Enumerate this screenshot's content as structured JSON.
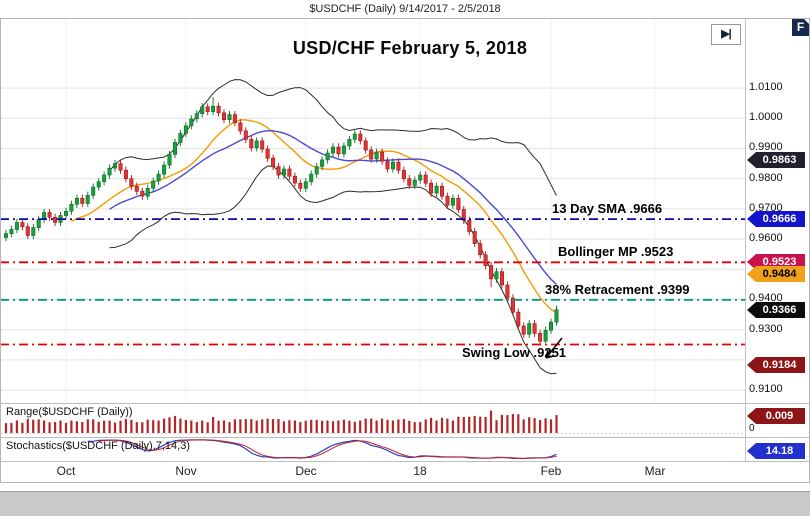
{
  "window": {
    "title": "$USDCHF (Daily)  9/14/2017 - 2/5/2018",
    "logo": "F"
  },
  "icons": {
    "step_forward": "▶|"
  },
  "chart_data": {
    "type": "candlestick",
    "symbol": "$USDCHF",
    "timeframe": "Daily",
    "date_range": "9/14/2017 - 2/5/2018",
    "title_annotation": "USD/CHF February 5, 2018",
    "colors": {
      "candle_up": "#17a13c",
      "candle_up_edge": "#0c6b26",
      "candle_down": "#e23434",
      "candle_down_edge": "#9c1717",
      "bollinger_band": "#2b2b2b",
      "sma13": "#f59a00",
      "sma20": "#4a4ad0",
      "grid": "#e3e3e3"
    },
    "y_axis": {
      "grid_min": 0.91,
      "grid_max": 1.01,
      "grid_step": 0.01,
      "labels": [
        {
          "text": "1.0100",
          "value": 1.01
        },
        {
          "text": "1.0000",
          "value": 1.0
        },
        {
          "text": "0.9900",
          "value": 0.99
        },
        {
          "text": "0.9800",
          "value": 0.98
        },
        {
          "text": "0.9700",
          "value": 0.97
        },
        {
          "text": "0.9600",
          "value": 0.96
        },
        {
          "text": "0.9400",
          "value": 0.94
        },
        {
          "text": "0.9300",
          "value": 0.93
        },
        {
          "text": "0.9100",
          "value": 0.91
        }
      ]
    },
    "x_axis": {
      "ticks": [
        {
          "label": "Oct",
          "index": 11
        },
        {
          "label": "Nov",
          "index": 33
        },
        {
          "label": "Dec",
          "index": 55
        },
        {
          "label": "18",
          "index": 76
        },
        {
          "label": "Feb",
          "index": 100
        },
        {
          "label": "Mar",
          "index": 119
        }
      ]
    },
    "hlines": [
      {
        "label": "13 Day SMA .9666",
        "value": 0.9666,
        "color": "#0a0aa8"
      },
      {
        "label": "Bollinger MP .9523",
        "value": 0.9523,
        "color": "#e80000"
      },
      {
        "label": "38% Retracement .9399",
        "value": 0.9399,
        "color": "#00997a"
      },
      {
        "label": "Swing Low .9251",
        "value": 0.9251,
        "color": "#e80000"
      }
    ],
    "price_badges": [
      {
        "text": "0.9863",
        "value": 0.9863,
        "bg": "#20202e"
      },
      {
        "text": "0.9666",
        "value": 0.9666,
        "bg": "#1414cc"
      },
      {
        "text": "0.9523",
        "value": 0.9523,
        "bg": "#c9134f"
      },
      {
        "text": "0.9484",
        "value": 0.9484,
        "bg": "#efa11c",
        "fg": "#000000"
      },
      {
        "text": "0.9366",
        "value": 0.9366,
        "bg": "#0c0c0c"
      },
      {
        "text": "0.9184",
        "value": 0.9184,
        "bg": "#8e1515"
      }
    ],
    "panels": [
      {
        "name": "range",
        "label": "Range($USDCHF (Daily))",
        "badge": {
          "text": "0.009",
          "bg": "#8e1515"
        },
        "zero_label": "0",
        "bar_color": "#b42525"
      },
      {
        "name": "stochastics",
        "label": "Stochastics($USDCHF (Daily),7,14,3)",
        "badge": {
          "text": "14.18",
          "bg": "#2230cc"
        },
        "k_color": "#2244cc",
        "d_color": "#cc2222"
      }
    ],
    "candles": [
      [
        0.9605,
        0.963,
        0.9593,
        0.9618
      ],
      [
        0.9618,
        0.9644,
        0.9606,
        0.9632
      ],
      [
        0.9632,
        0.9667,
        0.962,
        0.9655
      ],
      [
        0.9655,
        0.9667,
        0.9629,
        0.9641
      ],
      [
        0.9641,
        0.9653,
        0.96,
        0.9612
      ],
      [
        0.9612,
        0.965,
        0.96,
        0.9638
      ],
      [
        0.9638,
        0.9677,
        0.9626,
        0.9665
      ],
      [
        0.9665,
        0.97,
        0.9653,
        0.9688
      ],
      [
        0.9688,
        0.97,
        0.966,
        0.9672
      ],
      [
        0.9672,
        0.9684,
        0.9643,
        0.9655
      ],
      [
        0.9655,
        0.969,
        0.9643,
        0.9678
      ],
      [
        0.9678,
        0.9704,
        0.9666,
        0.9692
      ],
      [
        0.9692,
        0.9727,
        0.968,
        0.9715
      ],
      [
        0.9715,
        0.9747,
        0.9703,
        0.9735
      ],
      [
        0.9735,
        0.9747,
        0.9706,
        0.9718
      ],
      [
        0.9718,
        0.9757,
        0.9706,
        0.9745
      ],
      [
        0.9745,
        0.9784,
        0.9733,
        0.9772
      ],
      [
        0.9772,
        0.9802,
        0.976,
        0.979
      ],
      [
        0.979,
        0.9824,
        0.9778,
        0.9812
      ],
      [
        0.9812,
        0.9847,
        0.98,
        0.9835
      ],
      [
        0.9835,
        0.9862,
        0.9823,
        0.985
      ],
      [
        0.985,
        0.9862,
        0.9816,
        0.9828
      ],
      [
        0.9828,
        0.984,
        0.9788,
        0.98
      ],
      [
        0.98,
        0.9812,
        0.9763,
        0.9775
      ],
      [
        0.9775,
        0.9787,
        0.9746,
        0.9758
      ],
      [
        0.9758,
        0.977,
        0.973,
        0.9742
      ],
      [
        0.9742,
        0.978,
        0.973,
        0.9768
      ],
      [
        0.9768,
        0.9804,
        0.9756,
        0.9792
      ],
      [
        0.9792,
        0.9827,
        0.978,
        0.9815
      ],
      [
        0.9815,
        0.9857,
        0.9803,
        0.9845
      ],
      [
        0.9845,
        0.9892,
        0.9833,
        0.988
      ],
      [
        0.988,
        0.9932,
        0.9868,
        0.992
      ],
      [
        0.992,
        0.9962,
        0.9908,
        0.995
      ],
      [
        0.995,
        0.9987,
        0.9938,
        0.9975
      ],
      [
        0.9975,
        1.001,
        0.9963,
        0.9998
      ],
      [
        0.9998,
        1.0027,
        0.9986,
        1.0015
      ],
      [
        1.0015,
        1.005,
        1.0003,
        1.0038
      ],
      [
        1.0038,
        1.005,
        1.001,
        1.0022
      ],
      [
        1.0022,
        1.007,
        1.001,
        1.004
      ],
      [
        1.004,
        1.0052,
        1.0006,
        1.0018
      ],
      [
        1.0018,
        1.003,
        0.9983,
        0.9995
      ],
      [
        0.9995,
        1.0024,
        0.9983,
        1.0012
      ],
      [
        1.0012,
        1.0024,
        0.9973,
        0.9985
      ],
      [
        0.9985,
        0.9997,
        0.9946,
        0.9958
      ],
      [
        0.9958,
        0.997,
        0.9918,
        0.993
      ],
      [
        0.993,
        0.9942,
        0.989,
        0.9902
      ],
      [
        0.9902,
        0.9937,
        0.989,
        0.9925
      ],
      [
        0.9925,
        0.9937,
        0.9886,
        0.9898
      ],
      [
        0.9898,
        0.991,
        0.9856,
        0.9868
      ],
      [
        0.9868,
        0.988,
        0.9828,
        0.984
      ],
      [
        0.984,
        0.9852,
        0.98,
        0.9812
      ],
      [
        0.9812,
        0.9844,
        0.98,
        0.9832
      ],
      [
        0.9832,
        0.9844,
        0.9796,
        0.9808
      ],
      [
        0.9808,
        0.982,
        0.9773,
        0.9785
      ],
      [
        0.9785,
        0.9797,
        0.9756,
        0.9768
      ],
      [
        0.9768,
        0.9802,
        0.9756,
        0.979
      ],
      [
        0.979,
        0.9827,
        0.9778,
        0.9815
      ],
      [
        0.9815,
        0.9852,
        0.9803,
        0.984
      ],
      [
        0.984,
        0.9874,
        0.9828,
        0.9862
      ],
      [
        0.9862,
        0.9897,
        0.985,
        0.9885
      ],
      [
        0.9885,
        0.9917,
        0.9873,
        0.9905
      ],
      [
        0.9905,
        0.9917,
        0.987,
        0.9882
      ],
      [
        0.9882,
        0.992,
        0.987,
        0.9908
      ],
      [
        0.9908,
        0.9942,
        0.9896,
        0.993
      ],
      [
        0.993,
        0.996,
        0.9918,
        0.9948
      ],
      [
        0.9948,
        0.996,
        0.9913,
        0.9925
      ],
      [
        0.9925,
        0.9937,
        0.9883,
        0.9895
      ],
      [
        0.9895,
        0.9907,
        0.9853,
        0.9865
      ],
      [
        0.9865,
        0.99,
        0.9853,
        0.9888
      ],
      [
        0.9888,
        0.99,
        0.9846,
        0.9858
      ],
      [
        0.9858,
        0.987,
        0.982,
        0.9832
      ],
      [
        0.9832,
        0.9867,
        0.982,
        0.9855
      ],
      [
        0.9855,
        0.9867,
        0.9816,
        0.9828
      ],
      [
        0.9828,
        0.984,
        0.9788,
        0.98
      ],
      [
        0.98,
        0.9812,
        0.9766,
        0.9778
      ],
      [
        0.9778,
        0.9807,
        0.9766,
        0.9795
      ],
      [
        0.9795,
        0.9824,
        0.9783,
        0.9812
      ],
      [
        0.9812,
        0.9824,
        0.9773,
        0.9785
      ],
      [
        0.9785,
        0.9797,
        0.974,
        0.9752
      ],
      [
        0.9752,
        0.9787,
        0.974,
        0.9775
      ],
      [
        0.9775,
        0.9787,
        0.973,
        0.9742
      ],
      [
        0.9742,
        0.9754,
        0.97,
        0.9712
      ],
      [
        0.9712,
        0.9747,
        0.97,
        0.9735
      ],
      [
        0.9735,
        0.9747,
        0.9686,
        0.9698
      ],
      [
        0.9698,
        0.971,
        0.965,
        0.9662
      ],
      [
        0.9662,
        0.9674,
        0.9613,
        0.9625
      ],
      [
        0.9625,
        0.9637,
        0.9573,
        0.9585
      ],
      [
        0.9585,
        0.9597,
        0.9536,
        0.9548
      ],
      [
        0.9548,
        0.956,
        0.95,
        0.9512
      ],
      [
        0.9512,
        0.9524,
        0.944,
        0.9468
      ],
      [
        0.9468,
        0.9504,
        0.9456,
        0.9492
      ],
      [
        0.9492,
        0.9504,
        0.9436,
        0.9448
      ],
      [
        0.9448,
        0.946,
        0.9393,
        0.9405
      ],
      [
        0.9405,
        0.9417,
        0.9346,
        0.9358
      ],
      [
        0.9358,
        0.937,
        0.93,
        0.9312
      ],
      [
        0.9312,
        0.9324,
        0.9273,
        0.9285
      ],
      [
        0.9285,
        0.9332,
        0.9273,
        0.932
      ],
      [
        0.932,
        0.9332,
        0.9276,
        0.9288
      ],
      [
        0.9288,
        0.93,
        0.9251,
        0.9262
      ],
      [
        0.9262,
        0.931,
        0.9255,
        0.9298
      ],
      [
        0.9298,
        0.9337,
        0.9286,
        0.9325
      ],
      [
        0.9325,
        0.938,
        0.9313,
        0.9366
      ]
    ]
  }
}
